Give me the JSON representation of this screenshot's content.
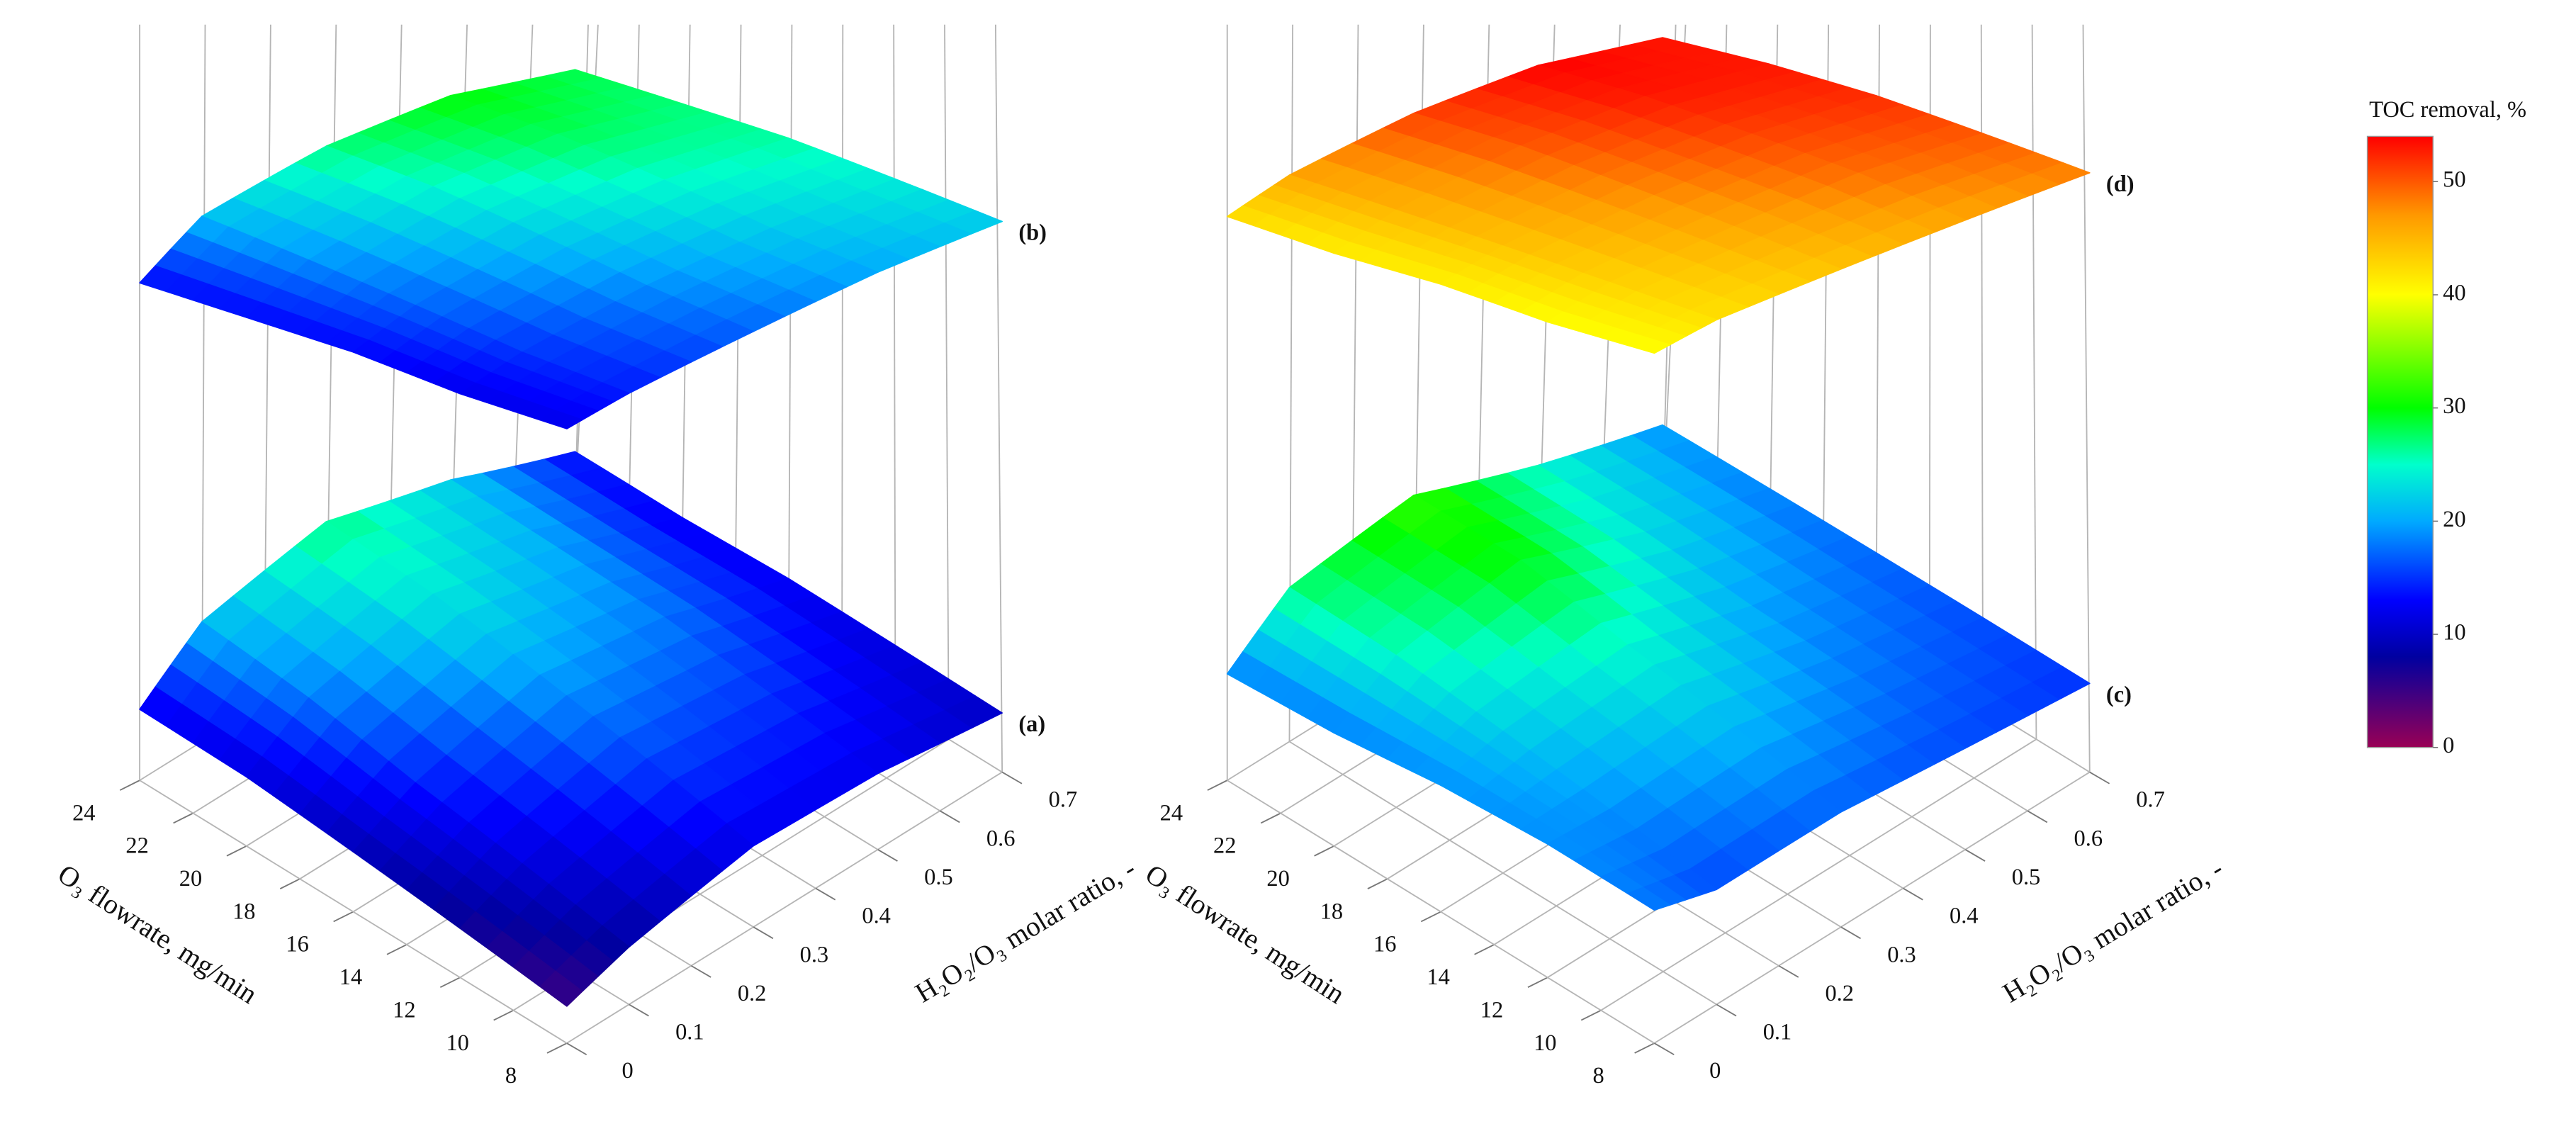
{
  "chart_data": [
    {
      "type": "surface",
      "x_label": "O₃ flowrate, mg/min",
      "y_label": "H₂O₂/O₃ molar ratio, -",
      "x": [
        8,
        12,
        16,
        20,
        24
      ],
      "y": [
        0,
        0.1,
        0.3,
        0.5,
        0.7
      ],
      "xlim": [
        8,
        24
      ],
      "xticks": [
        8,
        10,
        12,
        14,
        16,
        18,
        20,
        22,
        24
      ],
      "ylim": [
        0,
        0.7
      ],
      "yticks": [
        0,
        0.1,
        0.2,
        0.3,
        0.4,
        0.5,
        0.6,
        0.7
      ],
      "surfaces": [
        {
          "label": "(a)",
          "z": [
            [
              5,
              8,
              12,
              12,
              10
            ],
            [
              7,
              11,
              16,
              15,
              11
            ],
            [
              9,
              14,
              20,
              18,
              12
            ],
            [
              11,
              18,
              24,
              20,
              12
            ],
            [
              12,
              21,
              27,
              22,
              13
            ]
          ]
        },
        {
          "label": "(b)",
          "z": [
            [
              12,
              14,
              17,
              20,
              22
            ],
            [
              12,
              15,
              19,
              22,
              24
            ],
            [
              13,
              17,
              22,
              25,
              26
            ],
            [
              13,
              19,
              25,
              28,
              27
            ],
            [
              13,
              21,
              27,
              30,
              28
            ]
          ]
        }
      ]
    },
    {
      "type": "surface",
      "x_label": "O₃ flowrate, mg/min",
      "y_label": "H₂O₂/O₃ molar ratio, -",
      "x": [
        8,
        12,
        16,
        20,
        24
      ],
      "y": [
        0,
        0.1,
        0.3,
        0.5,
        0.7
      ],
      "xlim": [
        8,
        24
      ],
      "xticks": [
        8,
        10,
        12,
        14,
        16,
        18,
        20,
        22,
        24
      ],
      "ylim": [
        0,
        0.7
      ],
      "yticks": [
        0,
        0.1,
        0.2,
        0.3,
        0.4,
        0.5,
        0.6,
        0.7
      ],
      "surfaces": [
        {
          "label": "(c)",
          "z": [
            [
              18,
              16,
              17,
              16,
              15
            ],
            [
              19,
              19,
              21,
              18,
              16
            ],
            [
              19,
              22,
              25,
              20,
              17
            ],
            [
              18,
              25,
              30,
              23,
              18
            ],
            [
              18,
              27,
              32,
              25,
              19
            ]
          ]
        },
        {
          "label": "(d)",
          "z": [
            [
              40,
              42,
              44,
              46,
              48
            ],
            [
              40,
              43,
              46,
              49,
              50
            ],
            [
              41,
              44,
              48,
              51,
              52
            ],
            [
              41,
              45,
              50,
              53,
              53
            ],
            [
              42,
              46,
              51,
              54,
              53
            ]
          ]
        }
      ]
    }
  ],
  "colorbar": {
    "title": "TOC removal, %",
    "clim": [
      0,
      54
    ],
    "ticks": [
      0,
      10,
      20,
      30,
      40,
      50
    ],
    "colorscale": [
      [
        0,
        "#990055"
      ],
      [
        8,
        "#0000a0"
      ],
      [
        13,
        "#0000ff"
      ],
      [
        20,
        "#00aaff"
      ],
      [
        25,
        "#00ffcc"
      ],
      [
        30,
        "#00ff00"
      ],
      [
        40,
        "#ffff00"
      ],
      [
        47,
        "#ff9900"
      ],
      [
        54,
        "#ff0000"
      ]
    ]
  }
}
